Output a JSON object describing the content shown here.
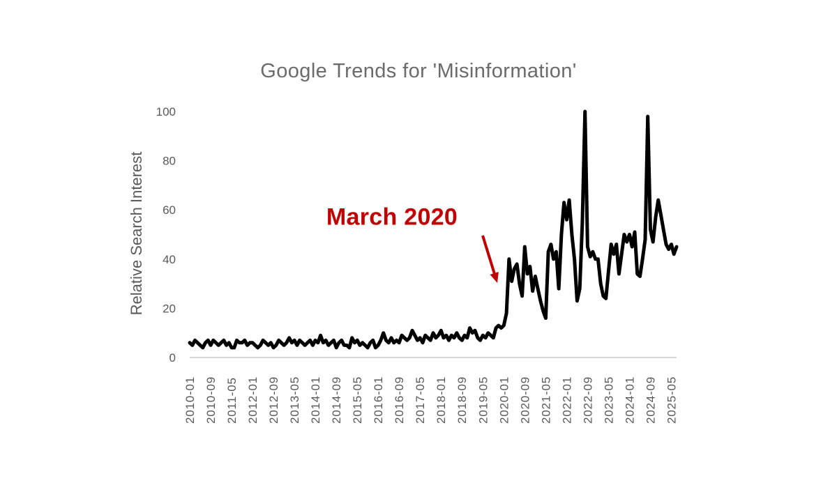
{
  "chart_data": {
    "type": "line",
    "title": "Google Trends for 'Misinformation'",
    "xlabel": "",
    "ylabel": "Relative Search Interest",
    "ylim": [
      0,
      100
    ],
    "y_ticks": [
      0,
      20,
      40,
      60,
      80,
      100
    ],
    "x_tick_labels": [
      "2010-01",
      "2010-09",
      "2011-05",
      "2012-01",
      "2012-09",
      "2013-05",
      "2014-01",
      "2014-09",
      "2015-05",
      "2016-01",
      "2016-09",
      "2017-05",
      "2018-01",
      "2018-09",
      "2019-05",
      "2020-01",
      "2020-09",
      "2021-05",
      "2022-01",
      "2022-09",
      "2023-05",
      "2024-01",
      "2024-09",
      "2025-05"
    ],
    "x_tick_interval_months": 8,
    "x_start": "2010-01",
    "x_end": "2025-07",
    "x_frequency": "monthly",
    "grid": "off",
    "legend": "none",
    "line_color": "#000000",
    "axis_text_color": "#595959",
    "title_color": "#6b6b6b",
    "baseline_color": "#d6d6d6",
    "series": [
      {
        "name": "Misinformation",
        "values": [
          6,
          5,
          7,
          6,
          5,
          4,
          6,
          7,
          5,
          7,
          6,
          5,
          6,
          7,
          5,
          6,
          4,
          4,
          7,
          6,
          6,
          7,
          5,
          6,
          6,
          5,
          4,
          5,
          7,
          6,
          5,
          6,
          4,
          5,
          7,
          6,
          5,
          6,
          8,
          6,
          7,
          5,
          7,
          6,
          5,
          6,
          7,
          5,
          7,
          6,
          9,
          6,
          7,
          5,
          6,
          7,
          4,
          6,
          7,
          5,
          5,
          4,
          8,
          6,
          7,
          5,
          6,
          5,
          4,
          6,
          7,
          4,
          5,
          7,
          10,
          7,
          6,
          8,
          6,
          7,
          6,
          9,
          8,
          7,
          8,
          11,
          9,
          7,
          8,
          6,
          9,
          8,
          7,
          10,
          8,
          9,
          11,
          8,
          9,
          7,
          9,
          8,
          10,
          8,
          7,
          9,
          8,
          12,
          10,
          11,
          8,
          7,
          9,
          8,
          10,
          9,
          8,
          12,
          13,
          12,
          13,
          18,
          40,
          31,
          36,
          38,
          30,
          25,
          45,
          34,
          37,
          27,
          33,
          28,
          23,
          19,
          16,
          43,
          46,
          40,
          43,
          28,
          50,
          63,
          56,
          64,
          50,
          40,
          23,
          28,
          55,
          100,
          45,
          41,
          43,
          40,
          40,
          30,
          25,
          24,
          35,
          46,
          42,
          46,
          34,
          42,
          50,
          47,
          50,
          45,
          51,
          34,
          33,
          40,
          48,
          98,
          52,
          47,
          57,
          64,
          58,
          52,
          46,
          44,
          46,
          42,
          45
        ]
      }
    ],
    "annotation": {
      "text": "March 2020",
      "color": "#c00000",
      "points_to": "2020-03",
      "points_to_value": 40
    }
  }
}
